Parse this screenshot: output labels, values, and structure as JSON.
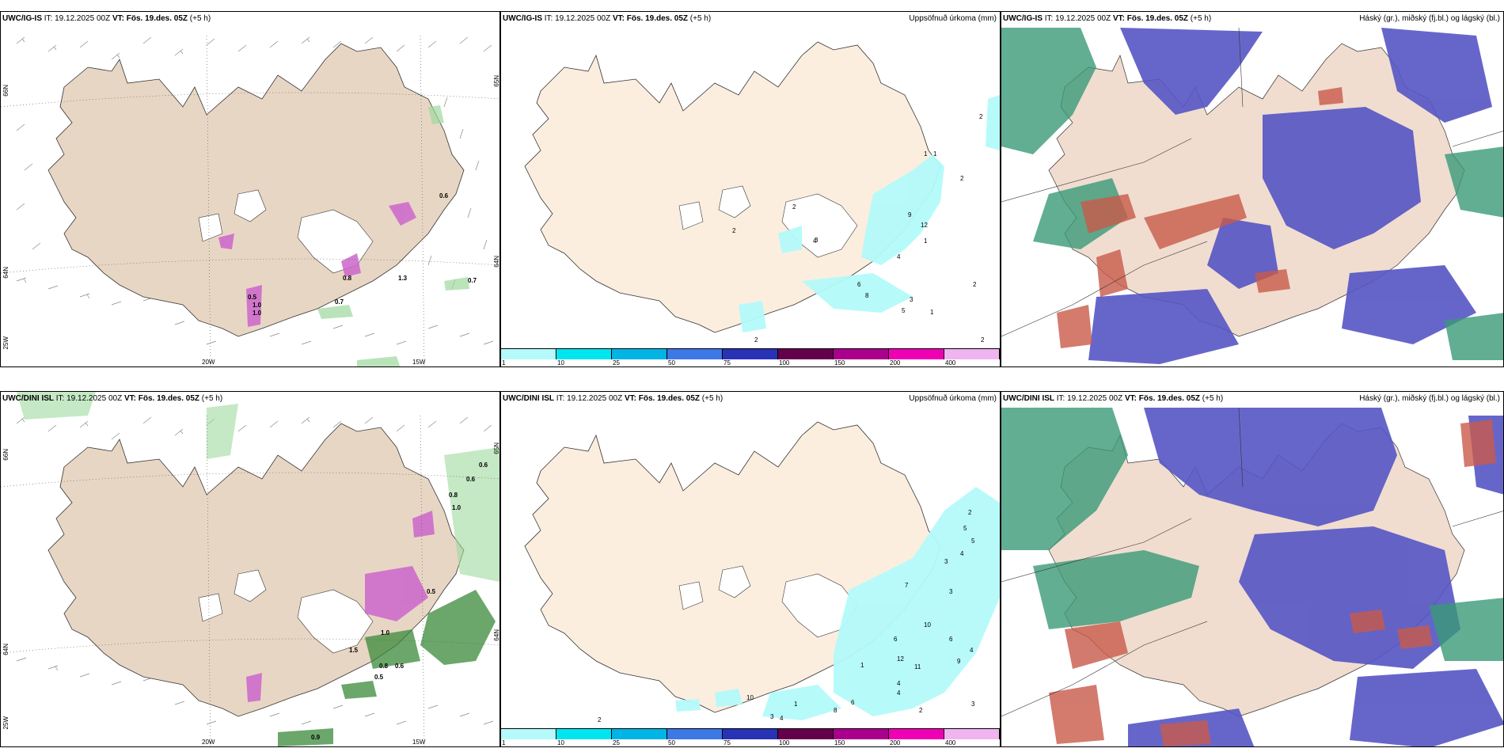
{
  "panels": [
    {
      "id": "top-left",
      "model": "UWC/IG-IS",
      "it_label": "IT:",
      "it_value": "19.12.2025 00Z",
      "vt_label": "VT:",
      "vt_value": "Fös. 19.des. 05Z",
      "lead": "(+5 h)",
      "right_title": "",
      "axis_labels": [
        "66N",
        "64N",
        "25W",
        "20W",
        "15W",
        "65N",
        "64N"
      ],
      "value_labels": [
        "0.6",
        "1.0",
        "0.7",
        "0.7",
        "0.8",
        "0.5",
        "1.0",
        "1.3"
      ]
    },
    {
      "id": "top-middle",
      "model": "UWC/IG-IS",
      "it_label": "IT:",
      "it_value": "19.12.2025 00Z",
      "vt_label": "VT:",
      "vt_value": "Fös. 19.des. 05Z",
      "lead": "(+5 h)",
      "right_title": "Uppsöfnuð úrkoma (mm)",
      "value_labels": [
        "2",
        "1",
        "1",
        "2",
        "2",
        "9",
        "12",
        "1",
        "4",
        "6",
        "8",
        "3",
        "5",
        "1",
        "2",
        "2",
        "4",
        "3",
        "2",
        "2"
      ]
    },
    {
      "id": "top-right",
      "model": "UWC/IG-IS",
      "it_label": "IT:",
      "it_value": "19.12.2025 00Z",
      "vt_label": "VT:",
      "vt_value": "Fös. 19.des. 05Z",
      "lead": "(+5 h)",
      "right_title": "Háský (gr.), miðský (fj.bl.) og lágský (bl.)"
    },
    {
      "id": "bottom-left",
      "model": "UWC/DINI ISL",
      "it_label": "IT:",
      "it_value": "19.12.2025 00Z",
      "vt_label": "VT:",
      "vt_value": "Fös. 19.des. 05Z",
      "lead": "(+5 h)",
      "right_title": "",
      "axis_labels": [
        "66N",
        "64N",
        "25W",
        "20W",
        "15W",
        "65N",
        "64N"
      ],
      "value_labels": [
        "0.6",
        "0.6",
        "0.8",
        "1.0",
        "0.5",
        "1.0",
        "0.8",
        "0.6",
        "0.5",
        "0.9",
        "1.5"
      ]
    },
    {
      "id": "bottom-middle",
      "model": "UWC/DINI ISL",
      "it_label": "IT:",
      "it_value": "19.12.2025 00Z",
      "vt_label": "VT:",
      "vt_value": "Fös. 19.des. 05Z",
      "lead": "(+5 h)",
      "right_title": "Uppsöfnuð úrkoma (mm)",
      "value_labels": [
        "2",
        "5",
        "5",
        "4",
        "3",
        "7",
        "3",
        "10",
        "6",
        "6",
        "4",
        "9",
        "12",
        "11",
        "1",
        "4",
        "6",
        "8",
        "4",
        "1",
        "3",
        "4",
        "2",
        "3",
        "10",
        "2"
      ]
    },
    {
      "id": "bottom-right",
      "model": "UWC/DINI ISL",
      "it_label": "IT:",
      "it_value": "19.12.2025 00Z",
      "vt_label": "VT:",
      "vt_value": "Fös. 19.des. 05Z",
      "lead": "(+5 h)",
      "right_title": "Háský (gr.), miðský (fj.bl.) og lágský (bl.)"
    }
  ],
  "precip_legend": {
    "ticks": [
      "1",
      "10",
      "25",
      "50",
      "75",
      "100",
      "150",
      "200",
      "400"
    ],
    "colors": [
      "#b4fafa",
      "#00e6f0",
      "#00b4e6",
      "#3c78e6",
      "#2832b4",
      "#64004b",
      "#aa008c",
      "#f000b4",
      "#f0b4f0"
    ]
  },
  "colors": {
    "land": "#fbeedf",
    "land_dark": "#e9d5c2",
    "high_cloud": "#3a9a78",
    "mid_cloud": "#c95a4a",
    "low_cloud": "#5050c0",
    "precip_light": "#b4fafa",
    "snow_magenta": "#cc66cc",
    "green_precip": "#3a8a3a"
  }
}
